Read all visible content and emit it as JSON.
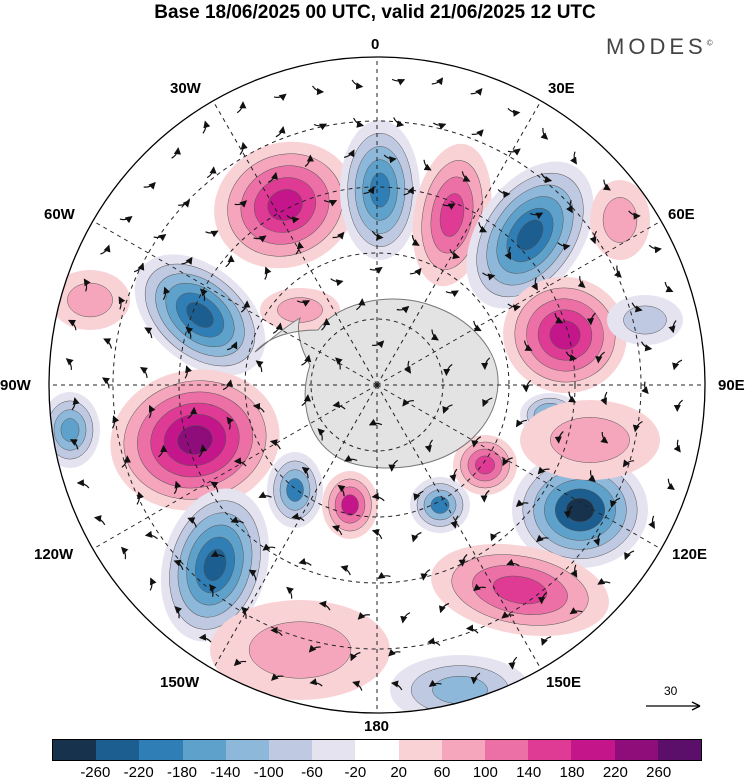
{
  "title": "Base 18/06/2025 00 UTC, valid 21/06/2025 12 UTC",
  "brand": "MODES",
  "brand_mark": "©",
  "longitude_labels": [
    "0",
    "30E",
    "60E",
    "90E",
    "120E",
    "150E",
    "180",
    "150W",
    "120W",
    "90W",
    "60W",
    "30W"
  ],
  "vector_scale": {
    "label": "30",
    "icon": "arrow-right-icon"
  },
  "colorbar": {
    "colors": [
      "#17324d",
      "#1c5e8f",
      "#2f7fb6",
      "#5ea2cb",
      "#8eb8da",
      "#c0c9e2",
      "#e6e3f0",
      "#ffffff",
      "#f9d2d6",
      "#f6a6bc",
      "#ec6fa6",
      "#df3b95",
      "#c4158a",
      "#8f0c7b",
      "#5c0f6a"
    ],
    "ticks": [
      "-260",
      "-220",
      "-180",
      "-140",
      "-100",
      "-60",
      "-20",
      "20",
      "60",
      "100",
      "140",
      "180",
      "220",
      "260"
    ]
  },
  "colors": {
    "land": "#e6e6e6",
    "coast": "#666666",
    "grid": "#222222",
    "contour": "#111111"
  }
}
